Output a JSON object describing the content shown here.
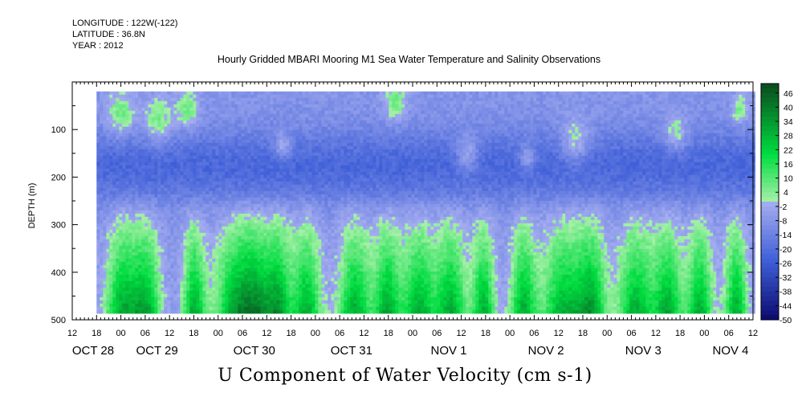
{
  "header": {
    "longitude": "LONGITUDE : 122W(-122)",
    "latitude": "LATITUDE : 36.8N",
    "year": "YEAR : 2012"
  },
  "chart_data": {
    "type": "heatmap",
    "title": "Hourly Gridded MBARI Mooring M1 Sea Water Temperature and Salinity Observations",
    "subtitle": "U Component of Water Velocity (cm s-1)",
    "ylabel": "DEPTH (m)",
    "xlabel": "",
    "y_axis": {
      "range": [
        500,
        0
      ],
      "reversed": true,
      "tick_values": [
        100,
        200,
        300,
        400,
        500
      ]
    },
    "x_axis": {
      "start": "2012-10-28T12:00",
      "end": "2012-11-04T12:00",
      "hour_labels": [
        "12",
        "18",
        "00",
        "06",
        "12",
        "18",
        "00",
        "06",
        "12",
        "18",
        "00",
        "06",
        "12",
        "18",
        "00",
        "06",
        "12",
        "18",
        "00",
        "06",
        "12",
        "18",
        "00",
        "06",
        "12",
        "18",
        "00",
        "06",
        "12"
      ],
      "day_labels": [
        "OCT 28",
        "OCT 29",
        "OCT 30",
        "OCT 31",
        "NOV  1",
        "NOV  2",
        "NOV  3",
        "NOV  4"
      ]
    },
    "data_extent": {
      "time_start": "2012-10-28T18:00",
      "time_end": "2012-11-04T12:00",
      "depth_min": 20,
      "depth_max": 485
    },
    "colorbar": {
      "min": -50,
      "max": 50,
      "step": 2,
      "labels": [
        "46",
        "40",
        "34",
        "28",
        "22",
        "16",
        "10",
        "4",
        "-2",
        "-8",
        "-14",
        "-20",
        "-26",
        "-32",
        "-38",
        "-44",
        "-50"
      ],
      "label_values": [
        46,
        40,
        34,
        28,
        22,
        16,
        10,
        4,
        -2,
        -8,
        -14,
        -20,
        -26,
        -32,
        -38,
        -44,
        -50
      ],
      "colors": {
        "neg_max": "#0a0a6e",
        "neg_mid": "#3f5fd8",
        "neg_low": "#a6aef0",
        "pos_low": "#a6f0a8",
        "pos_mid": "#00dd40",
        "pos_max": "#0a4a1e"
      }
    },
    "description_values_note_omitted": true
  }
}
